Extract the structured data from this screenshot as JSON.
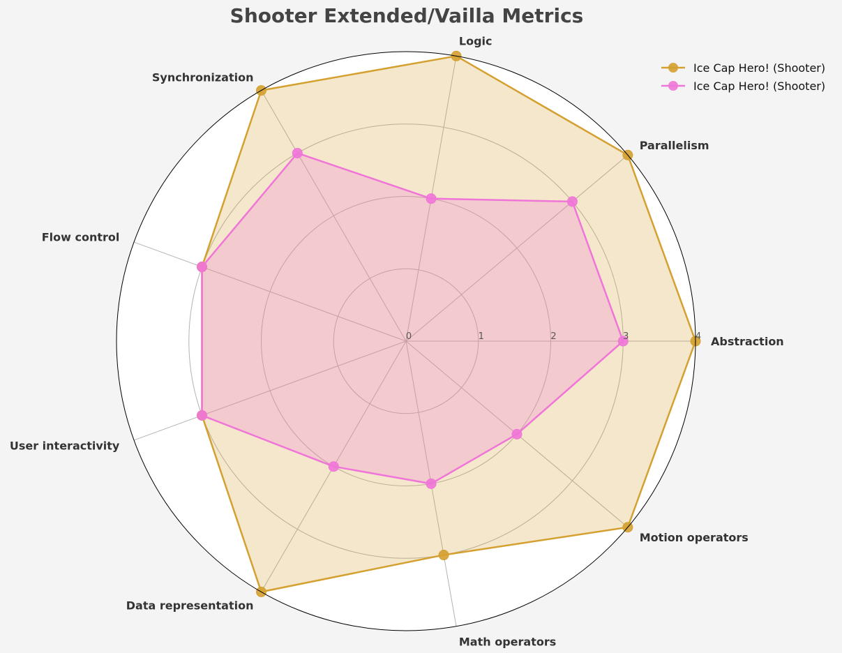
{
  "chart_data": {
    "type": "radar",
    "title": "Shooter Extended/Vailla Metrics",
    "categories": [
      "Abstraction",
      "Parallelism",
      "Logic",
      "Synchronization",
      "Flow control",
      "User interactivity",
      "Data representation",
      "Math operators",
      "Motion operators"
    ],
    "rlim": [
      0,
      4
    ],
    "r_ticks": [
      "0",
      "1",
      "2",
      "3",
      "4"
    ],
    "grid": true,
    "legend_position": "top-right",
    "series": [
      {
        "name": "Ice Cap Hero! (Shooter)",
        "color": "#d4a030",
        "values": [
          4,
          4,
          4,
          4,
          3,
          3,
          4,
          3,
          4
        ]
      },
      {
        "name": "Ice Cap Hero! (Shooter)",
        "color": "#f075d8",
        "values": [
          3,
          3,
          2,
          3,
          3,
          3,
          2,
          2,
          2
        ]
      }
    ]
  }
}
